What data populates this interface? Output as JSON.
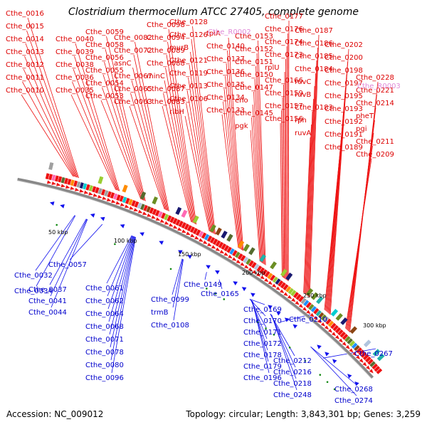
{
  "title": "Clostridium thermocellum ATCC 27405, complete genome",
  "footer": {
    "accession": "Accession: NC_009012",
    "topology": "Topology: circular; Length: 3,843,301 bp; Genes: 3,259"
  },
  "colors": {
    "forward_label": "#dd0000",
    "reverse_label": "#0000cc",
    "pseudo_label": "#e08ad8",
    "forward_feature": "#ee1111",
    "reverse_feature": "#1111ee",
    "backbone": "#888888",
    "tick_dot": "#118811"
  },
  "scale_labels": [
    "50 kbp",
    "100 kbp",
    "150 kbp",
    "200 kbp",
    "250 kbp",
    "300 kbp"
  ],
  "forward_labels": [
    "Cthe_0010",
    "Cthe_0011",
    "Cthe_0012",
    "Cthe_0013",
    "Cthe_0014",
    "Cthe_0015",
    "Cthe_0016",
    "Cthe_0035",
    "Cthe_0036",
    "Cthe_0038",
    "Cthe_0039",
    "Cthe_0040",
    "Cthe_0053",
    "Cthe_0054",
    "Cthe_0055",
    "Cthe_0056",
    "Cthe_0058",
    "Cthe_0059",
    "Cthe_0063",
    "Cthe_0065",
    "Cthe_0067",
    "asnC",
    "Cthe_0072",
    "Cthe_0082",
    "Cthe_0083",
    "Cthe_0087",
    "minC",
    "Cthe_0088",
    "Cthe_0089",
    "Cthe_0094",
    "Cthe_0098",
    "ribH",
    "Cthe_0106",
    "Cthe_0113",
    "Cthe_0119",
    "Cthe_0121",
    "murB",
    "Cthe_0126",
    "Cthe_0128",
    "Cthe_0133",
    "Cthe_0134",
    "Cthe_0135",
    "Cthe_0136",
    "Cthe_0137",
    "Cthe_0140",
    "tpiA",
    "pgk",
    "Cthe_0145",
    "eno",
    "Cthe_0147",
    "Cthe_0150",
    "Cthe_0151",
    "Cthe_0152",
    "Cthe_0153",
    "Cthe_0156",
    "Cthe_0157",
    "Cthe_0159",
    "Cthe_0166",
    "rplU",
    "Cthe_0173",
    "Cthe_0174",
    "Cthe_0176",
    "Cthe_0177",
    "ruvA",
    "rph",
    "Cthe_0183",
    "ruvB",
    "ruvC",
    "Cthe_0184",
    "Cthe_0185",
    "Cthe_0186",
    "Cthe_0187",
    "Cthe_0189",
    "Cthe_0191",
    "Cthe_0192",
    "Cthe_0193",
    "Cthe_0195",
    "Cthe_0197",
    "Cthe_0198",
    "Cthe_0200",
    "Cthe_0202",
    "Cthe_0209",
    "Cthe_0211",
    "pgi",
    "pheT",
    "Cthe_0214",
    "Cthe_0221",
    "Cthe_0228"
  ],
  "pseudo_labels": [
    "Cthe_R0002",
    "Cthe_R0003"
  ],
  "reverse_labels": [
    "Cthe_0032",
    "Cthe_0034",
    "Cthe_0037",
    "Cthe_0041",
    "Cthe_0044",
    "Cthe_0057",
    "Cthe_0061",
    "Cthe_0062",
    "Cthe_0064",
    "Cthe_0068",
    "Cthe_0071",
    "Cthe_0078",
    "Cthe_0080",
    "Cthe_0096",
    "Cthe_0099",
    "trmB",
    "Cthe_0108",
    "Cthe_0149",
    "Cthe_0165",
    "Cthe_0169",
    "Cthe_0170",
    "Cthe_0171",
    "Cthe_0172",
    "Cthe_0178",
    "Cthe_0179",
    "Cthe_0196",
    "Cthe_0210",
    "Cthe_0212",
    "Cthe_0216",
    "Cthe_0218",
    "Cthe_0248",
    "Cthe_0267",
    "Cthe_0268",
    "Cthe_0274"
  ]
}
